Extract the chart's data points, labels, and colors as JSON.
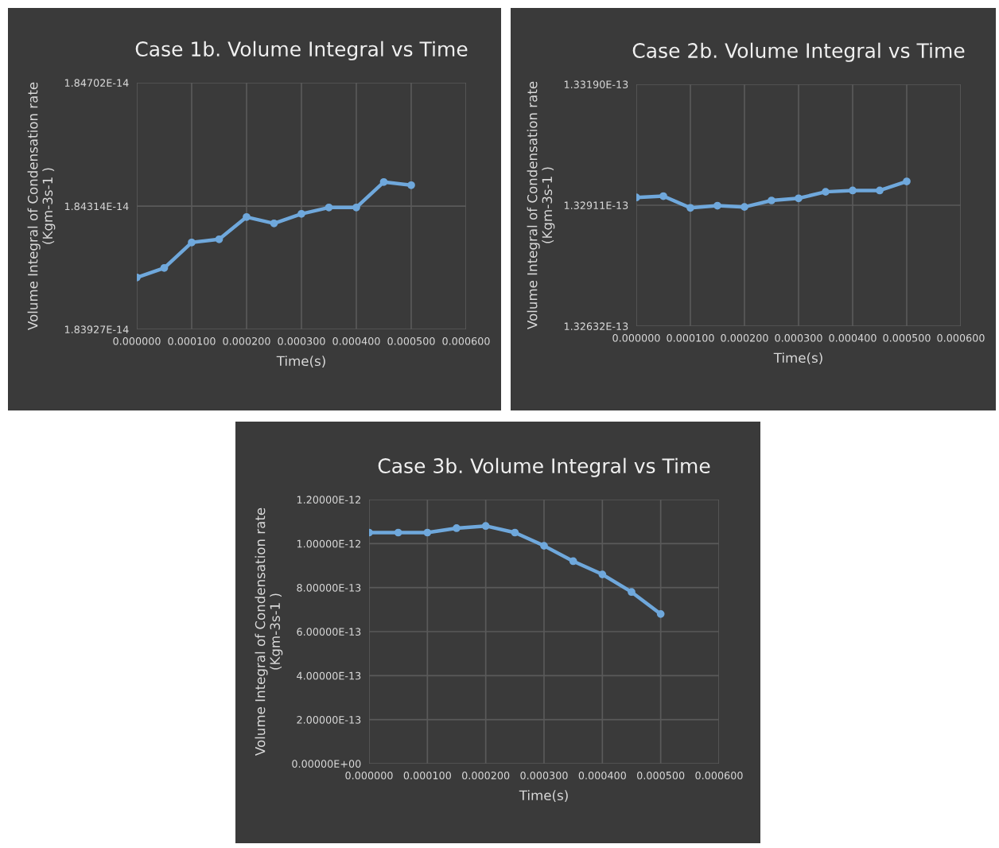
{
  "chart_data": [
    {
      "type": "line",
      "title": "Case 1b. Volume Integral vs Time",
      "xlabel": "Time(s)",
      "ylabel": "Volume Integral of Condensation rate\n(Kgm-3s-1 )",
      "x": [
        0,
        5e-05,
        0.0001,
        0.00015,
        0.0002,
        0.00025,
        0.0003,
        0.00035,
        0.0004,
        0.00045,
        0.0005
      ],
      "series": [
        {
          "color": "#6fa8dc",
          "values": [
            1.8409e-14,
            1.8412e-14,
            1.842e-14,
            1.8421e-14,
            1.8428e-14,
            1.8426e-14,
            1.8429e-14,
            1.8431e-14,
            1.8431e-14,
            1.8439e-14,
            1.8438e-14
          ]
        }
      ],
      "xlim": [
        0,
        0.0006
      ],
      "xticks": [
        {
          "value": 0,
          "label": "0.000000"
        },
        {
          "value": 0.0001,
          "label": "0.000100"
        },
        {
          "value": 0.0002,
          "label": "0.000200"
        },
        {
          "value": 0.0003,
          "label": "0.000300"
        },
        {
          "value": 0.0004,
          "label": "0.000400"
        },
        {
          "value": 0.0005,
          "label": "0.000500"
        },
        {
          "value": 0.0006,
          "label": "0.000600"
        }
      ],
      "ylim": [
        1.83927e-14,
        1.84702e-14
      ],
      "yticks": [
        {
          "value": 1.83927e-14,
          "label": "1.83927E-14"
        },
        {
          "value": 1.84314e-14,
          "label": "1.84314E-14"
        },
        {
          "value": 1.84702e-14,
          "label": "1.84702E-14"
        }
      ],
      "grid": true,
      "legend": false,
      "marker": "circle",
      "line_style": "solid"
    },
    {
      "type": "line",
      "title": "Case 2b. Volume Integral vs Time",
      "xlabel": "Time(s)",
      "ylabel": "Volume Integral of Condensation rate\n(Kgm-3s-1 )",
      "x": [
        0,
        5e-05,
        0.0001,
        0.00015,
        0.0002,
        0.00025,
        0.0003,
        0.00035,
        0.0004,
        0.00045,
        0.0005
      ],
      "series": [
        {
          "color": "#6fa8dc",
          "values": [
            1.32929e-13,
            1.32932e-13,
            1.32905e-13,
            1.3291e-13,
            1.32907e-13,
            1.32922e-13,
            1.32927e-13,
            1.32942e-13,
            1.32945e-13,
            1.32945e-13,
            1.32966e-13
          ]
        }
      ],
      "xlim": [
        0,
        0.0006
      ],
      "xticks": [
        {
          "value": 0,
          "label": "0.000000"
        },
        {
          "value": 0.0001,
          "label": "0.000100"
        },
        {
          "value": 0.0002,
          "label": "0.000200"
        },
        {
          "value": 0.0003,
          "label": "0.000300"
        },
        {
          "value": 0.0004,
          "label": "0.000400"
        },
        {
          "value": 0.0005,
          "label": "0.000500"
        },
        {
          "value": 0.0006,
          "label": "0.000600"
        }
      ],
      "ylim": [
        1.32632e-13,
        1.3319e-13
      ],
      "yticks": [
        {
          "value": 1.32632e-13,
          "label": "1.32632E-13"
        },
        {
          "value": 1.32911e-13,
          "label": "1.32911E-13"
        },
        {
          "value": 1.3319e-13,
          "label": "1.33190E-13"
        }
      ],
      "grid": true,
      "legend": false,
      "marker": "circle",
      "line_style": "solid"
    },
    {
      "type": "line",
      "title": "Case 3b. Volume Integral vs Time",
      "xlabel": "Time(s)",
      "ylabel": "Volume Integral of Condensation rate\n(Kgm-3s-1 )",
      "x": [
        0,
        5e-05,
        0.0001,
        0.00015,
        0.0002,
        0.00025,
        0.0003,
        0.00035,
        0.0004,
        0.00045,
        0.0005
      ],
      "series": [
        {
          "color": "#6fa8dc",
          "values": [
            1.05e-12,
            1.05e-12,
            1.05e-12,
            1.07e-12,
            1.08e-12,
            1.05e-12,
            9.9e-13,
            9.2e-13,
            8.6e-13,
            7.8e-13,
            6.8e-13
          ]
        }
      ],
      "xlim": [
        0,
        0.0006
      ],
      "xticks": [
        {
          "value": 0,
          "label": "0.000000"
        },
        {
          "value": 0.0001,
          "label": "0.000100"
        },
        {
          "value": 0.0002,
          "label": "0.000200"
        },
        {
          "value": 0.0003,
          "label": "0.000300"
        },
        {
          "value": 0.0004,
          "label": "0.000400"
        },
        {
          "value": 0.0005,
          "label": "0.000500"
        },
        {
          "value": 0.0006,
          "label": "0.000600"
        }
      ],
      "ylim": [
        0,
        1.2e-12
      ],
      "yticks": [
        {
          "value": 0,
          "label": "0.00000E+00"
        },
        {
          "value": 2e-13,
          "label": "2.00000E-13"
        },
        {
          "value": 4e-13,
          "label": "4.00000E-13"
        },
        {
          "value": 6e-13,
          "label": "6.00000E-13"
        },
        {
          "value": 8e-13,
          "label": "8.00000E-13"
        },
        {
          "value": 1e-12,
          "label": "1.00000E-12"
        },
        {
          "value": 1.2e-12,
          "label": "1.20000E-12"
        }
      ],
      "grid": true,
      "legend": false,
      "marker": "circle",
      "line_style": "solid"
    }
  ]
}
